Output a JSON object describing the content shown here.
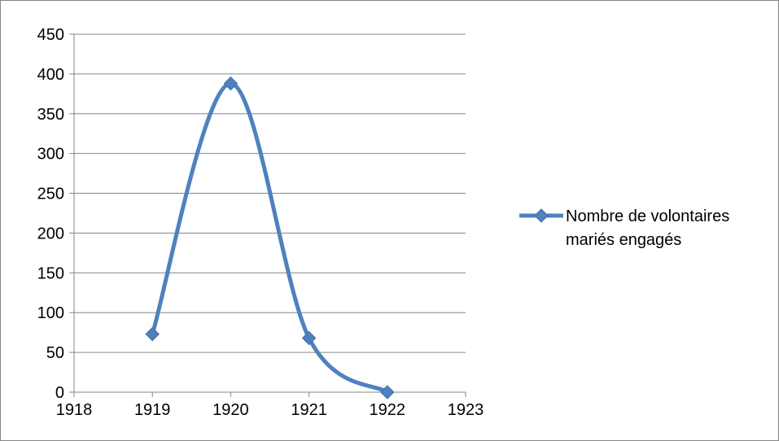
{
  "chart_data": {
    "type": "scatter",
    "title": "",
    "xlabel": "",
    "ylabel": "",
    "xlim": [
      1918,
      1923
    ],
    "ylim": [
      0,
      450
    ],
    "x_ticks": [
      "1918",
      "1919",
      "1920",
      "1921",
      "1922",
      "1923"
    ],
    "y_ticks": [
      "0",
      "50",
      "100",
      "150",
      "200",
      "250",
      "300",
      "350",
      "400",
      "450"
    ],
    "grid": "horizontal",
    "line_style": "smoothed lines with diamond markers",
    "legend_position": "right",
    "series": [
      {
        "name": "Nombre de volontaires mariés engagés",
        "x": [
          1919,
          1920,
          1921,
          1922
        ],
        "y": [
          73,
          388,
          68,
          0
        ],
        "color": "#4F81BD"
      }
    ]
  },
  "legend": {
    "line1": "Nombre de volontaires",
    "line2": "mariés engagés"
  }
}
